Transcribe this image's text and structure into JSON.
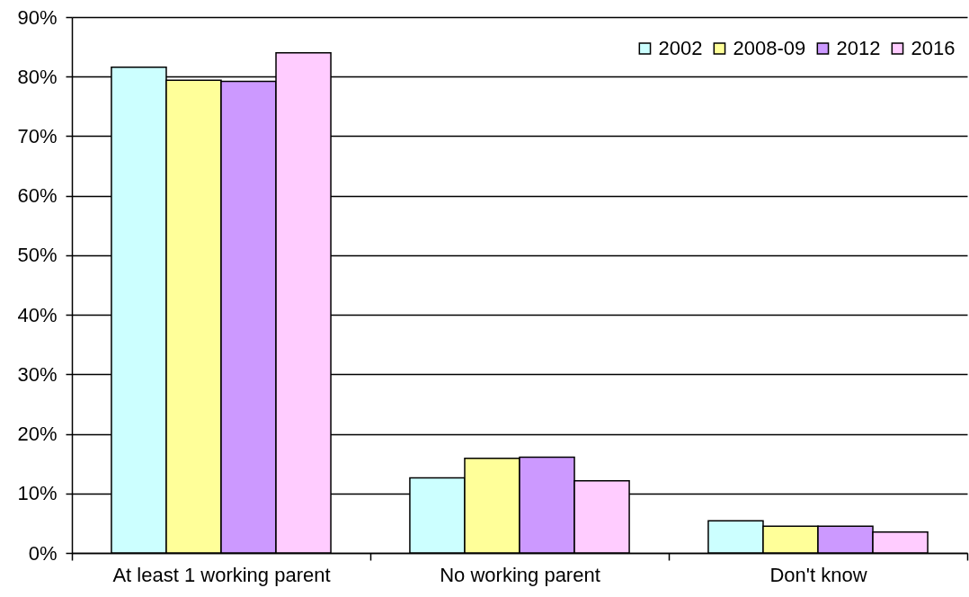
{
  "chart_data": {
    "type": "bar",
    "categories": [
      "At least 1 working parent",
      "No working parent",
      "Don't know"
    ],
    "series": [
      {
        "name": "2002",
        "color": "#ccffff",
        "values": [
          81.6,
          12.6,
          5.4
        ]
      },
      {
        "name": "2008-09",
        "color": "#ffff99",
        "values": [
          79.4,
          15.9,
          4.5
        ]
      },
      {
        "name": "2012",
        "color": "#cc99ff",
        "values": [
          79.2,
          16.1,
          4.5
        ]
      },
      {
        "name": "2016",
        "color": "#ffccff",
        "values": [
          84.0,
          12.1,
          3.5
        ]
      }
    ],
    "ylim": [
      0,
      90
    ],
    "yticks": [
      {
        "value": 0,
        "label": "0%"
      },
      {
        "value": 10,
        "label": "10%"
      },
      {
        "value": 20,
        "label": "20%"
      },
      {
        "value": 30,
        "label": "30%"
      },
      {
        "value": 40,
        "label": "40%"
      },
      {
        "value": 50,
        "label": "50%"
      },
      {
        "value": 60,
        "label": "60%"
      },
      {
        "value": 70,
        "label": "70%"
      },
      {
        "value": 80,
        "label": "80%"
      },
      {
        "value": 90,
        "label": "90%"
      }
    ],
    "grid": "y",
    "legend": "top right"
  }
}
